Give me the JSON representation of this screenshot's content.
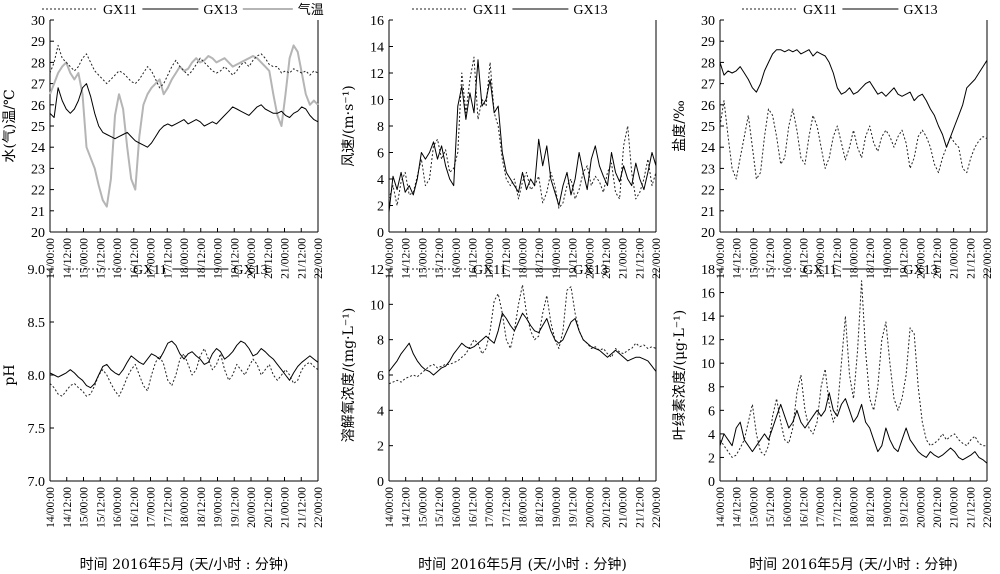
{
  "x_axis": {
    "label": "时间 2016年5月 (天/小时 : 分钟)",
    "tick_labels": [
      "14/00:00",
      "14/12:00",
      "15/00:00",
      "15/12:00",
      "16/00:00",
      "16/12:00",
      "17/00:00",
      "17/12:00",
      "18/00:00",
      "18/12:00",
      "19/00:00",
      "19/12:00",
      "20/00:00",
      "20/12:00",
      "21/00:00",
      "21/12:00",
      "22/00:00"
    ]
  },
  "styles": {
    "GX11": {
      "color": "#222222",
      "dash": "2,2",
      "width": 1
    },
    "GX13": {
      "color": "#000000",
      "dash": "",
      "width": 1
    },
    "气温": {
      "color": "#b5b5b5",
      "dash": "",
      "width": 2
    }
  },
  "chart_data": [
    {
      "type": "line",
      "ylabel": "水(气)温/℃",
      "ylim": [
        20,
        30
      ],
      "yticks": [
        "20",
        "21",
        "22",
        "23",
        "24",
        "25",
        "26",
        "27",
        "28",
        "29",
        "30"
      ],
      "series": [
        {
          "name": "GX11",
          "values": [
            27.5,
            28.0,
            28.8,
            28.2,
            28.0,
            27.8,
            27.6,
            27.8,
            28.2,
            28.4,
            28.0,
            27.6,
            27.4,
            27.2,
            27.0,
            27.2,
            27.4,
            27.6,
            27.5,
            27.3,
            27.1,
            27.0,
            27.2,
            27.5,
            27.8,
            27.6,
            27.2,
            26.8,
            27.0,
            27.4,
            27.8,
            28.1,
            27.8,
            27.6,
            27.4,
            27.6,
            27.9,
            28.2,
            28.0,
            27.8,
            27.6,
            27.5,
            27.6,
            27.8,
            27.6,
            27.4,
            27.6,
            27.9,
            28.0,
            27.8,
            28.1,
            28.3,
            28.4,
            28.2,
            27.9,
            27.8,
            27.8,
            27.5,
            27.6,
            27.5,
            27.7,
            27.6,
            27.5,
            27.6,
            27.4,
            27.6,
            27.5
          ]
        },
        {
          "name": "GX13",
          "values": [
            25.6,
            25.4,
            26.8,
            26.2,
            25.8,
            25.6,
            25.8,
            26.2,
            26.8,
            27.0,
            26.4,
            25.6,
            25.0,
            24.7,
            24.6,
            24.5,
            24.4,
            24.5,
            24.6,
            24.7,
            24.5,
            24.3,
            24.2,
            24.1,
            24.0,
            24.2,
            24.5,
            24.8,
            25.0,
            25.1,
            25.0,
            25.1,
            25.2,
            25.3,
            25.1,
            25.2,
            25.3,
            25.2,
            25.0,
            25.1,
            25.2,
            25.1,
            25.3,
            25.5,
            25.7,
            25.9,
            25.8,
            25.7,
            25.6,
            25.5,
            25.7,
            25.9,
            26.0,
            25.8,
            25.7,
            25.6,
            25.6,
            25.7,
            25.5,
            25.4,
            25.6,
            25.7,
            25.9,
            25.8,
            25.5,
            25.3,
            25.2
          ]
        },
        {
          "name": "气温",
          "values": [
            26.5,
            27.0,
            27.5,
            27.8,
            28.0,
            27.5,
            27.2,
            27.5,
            26.5,
            24.0,
            23.5,
            23.0,
            22.2,
            21.5,
            21.2,
            22.5,
            25.5,
            26.5,
            25.8,
            24.0,
            22.5,
            22.0,
            24.5,
            26.0,
            26.5,
            26.8,
            27.0,
            27.2,
            26.5,
            26.8,
            27.2,
            27.5,
            27.8,
            27.6,
            27.7,
            28.0,
            28.2,
            28.0,
            28.1,
            28.3,
            28.2,
            28.0,
            28.1,
            28.2,
            28.0,
            27.8,
            27.9,
            28.0,
            28.1,
            28.2,
            28.3,
            28.2,
            28.0,
            27.8,
            27.6,
            26.5,
            25.5,
            25.0,
            26.5,
            28.2,
            28.8,
            28.5,
            27.5,
            26.5,
            26.0,
            26.2,
            26.0
          ]
        }
      ]
    },
    {
      "type": "line",
      "ylabel": "风速/(m·s⁻¹)",
      "ylim": [
        0,
        16
      ],
      "yticks": [
        "0",
        "2",
        "4",
        "6",
        "8",
        "10",
        "12",
        "14",
        "16"
      ],
      "series": [
        {
          "name": "GX11",
          "values": [
            2.5,
            3.5,
            2.0,
            3.8,
            4.5,
            2.8,
            3.0,
            4.2,
            5.5,
            3.5,
            4.0,
            6.5,
            7.0,
            5.5,
            6.2,
            4.5,
            4.8,
            6.0,
            12.0,
            9.0,
            11.5,
            13.2,
            8.5,
            10.0,
            9.5,
            12.8,
            9.0,
            8.0,
            5.5,
            4.0,
            3.5,
            4.0,
            2.5,
            3.8,
            4.5,
            3.2,
            3.5,
            4.2,
            2.2,
            3.0,
            4.5,
            3.5,
            1.8,
            2.2,
            3.5,
            4.0,
            2.5,
            3.2,
            4.5,
            5.0,
            3.5,
            4.2,
            3.8,
            3.0,
            4.5,
            5.2,
            3.0,
            2.5,
            6.5,
            8.0,
            4.5,
            2.5,
            3.0,
            4.0,
            5.5,
            3.5,
            4.5
          ]
        },
        {
          "name": "GX13",
          "values": [
            1.5,
            4.2,
            3.2,
            4.5,
            3.0,
            3.5,
            2.8,
            4.0,
            6.0,
            5.5,
            6.0,
            6.8,
            5.5,
            6.5,
            5.0,
            4.0,
            3.5,
            9.5,
            11.0,
            8.5,
            10.5,
            9.0,
            13.0,
            9.5,
            10.0,
            11.5,
            9.0,
            9.5,
            6.0,
            4.5,
            4.0,
            3.5,
            3.0,
            4.5,
            3.2,
            4.0,
            3.5,
            7.0,
            5.0,
            6.5,
            4.0,
            3.0,
            2.0,
            3.5,
            4.5,
            2.8,
            4.0,
            6.0,
            4.5,
            3.2,
            5.5,
            6.5,
            5.0,
            4.2,
            3.5,
            6.0,
            4.5,
            3.8,
            5.0,
            4.0,
            3.5,
            5.2,
            4.0,
            3.2,
            4.5,
            6.0,
            5.0
          ]
        }
      ]
    },
    {
      "type": "line",
      "ylabel": "盐度/‰",
      "ylim": [
        20,
        30
      ],
      "yticks": [
        "20",
        "21",
        "22",
        "23",
        "24",
        "25",
        "26",
        "27",
        "28",
        "29",
        "30"
      ],
      "series": [
        {
          "name": "GX11",
          "values": [
            25.0,
            26.2,
            24.5,
            23.0,
            22.5,
            23.5,
            24.5,
            25.5,
            24.0,
            22.5,
            22.8,
            24.5,
            25.8,
            25.5,
            24.5,
            23.2,
            23.5,
            25.0,
            25.8,
            24.8,
            23.5,
            23.2,
            24.5,
            25.5,
            25.0,
            24.0,
            23.0,
            23.5,
            24.5,
            25.0,
            24.2,
            23.4,
            24.0,
            24.8,
            24.0,
            23.5,
            24.5,
            25.0,
            24.2,
            23.8,
            24.5,
            24.8,
            24.5,
            24.0,
            24.5,
            24.8,
            24.2,
            23.0,
            23.5,
            24.5,
            24.8,
            24.5,
            24.0,
            23.2,
            22.8,
            23.5,
            24.0,
            24.5,
            24.2,
            24.0,
            23.0,
            22.8,
            23.5,
            24.0,
            24.3,
            24.5,
            24.4
          ]
        },
        {
          "name": "GX13",
          "values": [
            28.0,
            27.4,
            27.6,
            27.5,
            27.6,
            27.8,
            27.5,
            27.2,
            26.8,
            26.6,
            27.0,
            27.6,
            28.0,
            28.4,
            28.6,
            28.6,
            28.5,
            28.6,
            28.5,
            28.6,
            28.4,
            28.5,
            28.6,
            28.3,
            28.5,
            28.4,
            28.3,
            28.0,
            27.5,
            26.8,
            26.5,
            26.6,
            26.8,
            26.5,
            26.6,
            26.8,
            27.0,
            27.1,
            26.8,
            26.5,
            26.6,
            26.4,
            26.6,
            26.8,
            26.5,
            26.4,
            26.5,
            26.6,
            26.2,
            26.4,
            26.5,
            26.2,
            25.8,
            25.5,
            25.0,
            24.6,
            24.0,
            24.5,
            25.0,
            25.5,
            26.0,
            26.8,
            27.0,
            27.2,
            27.5,
            27.8,
            28.1
          ]
        }
      ]
    },
    {
      "type": "line",
      "ylabel": "pH",
      "ylim": [
        7.0,
        9.0
      ],
      "yticks": [
        "7.0",
        "7.5",
        "8.0",
        "8.5",
        "9.0"
      ],
      "series": [
        {
          "name": "GX11",
          "values": [
            7.92,
            7.88,
            7.82,
            7.8,
            7.85,
            7.9,
            7.92,
            7.88,
            7.85,
            7.8,
            7.82,
            7.9,
            8.0,
            8.05,
            8.0,
            7.92,
            7.85,
            7.8,
            7.88,
            7.98,
            8.05,
            8.1,
            8.0,
            7.9,
            7.85,
            8.0,
            8.12,
            8.18,
            8.1,
            7.95,
            7.9,
            8.0,
            8.15,
            8.2,
            8.1,
            8.0,
            8.05,
            8.18,
            8.25,
            8.15,
            8.05,
            8.1,
            8.2,
            8.05,
            7.95,
            8.0,
            8.1,
            8.05,
            8.0,
            8.08,
            8.15,
            8.1,
            8.0,
            8.05,
            8.1,
            8.0,
            7.95,
            8.0,
            8.05,
            8.0,
            7.92,
            7.95,
            8.05,
            8.1,
            8.12,
            8.08,
            8.05
          ]
        },
        {
          "name": "GX13",
          "values": [
            8.02,
            8.0,
            7.98,
            8.0,
            8.02,
            8.05,
            8.02,
            7.98,
            7.95,
            7.9,
            7.88,
            7.92,
            8.0,
            8.08,
            8.1,
            8.05,
            8.02,
            8.0,
            8.05,
            8.12,
            8.18,
            8.15,
            8.12,
            8.1,
            8.15,
            8.2,
            8.18,
            8.15,
            8.22,
            8.3,
            8.32,
            8.28,
            8.2,
            8.15,
            8.2,
            8.22,
            8.18,
            8.15,
            8.1,
            8.12,
            8.2,
            8.25,
            8.22,
            8.15,
            8.18,
            8.22,
            8.28,
            8.32,
            8.3,
            8.25,
            8.18,
            8.2,
            8.25,
            8.22,
            8.18,
            8.15,
            8.1,
            8.05,
            8.0,
            7.95,
            8.02,
            8.08,
            8.12,
            8.15,
            8.18,
            8.15,
            8.12
          ]
        }
      ]
    },
    {
      "type": "line",
      "ylabel": "溶解氧浓度/(mg·L⁻¹)",
      "ylim": [
        0,
        12
      ],
      "yticks": [
        "0",
        "2",
        "4",
        "6",
        "8",
        "10",
        "12"
      ],
      "series": [
        {
          "name": "GX11",
          "values": [
            5.5,
            5.6,
            5.7,
            5.6,
            5.8,
            5.9,
            6.0,
            5.9,
            6.1,
            6.3,
            6.5,
            6.6,
            6.4,
            6.5,
            6.6,
            6.6,
            6.7,
            6.8,
            7.0,
            7.2,
            7.6,
            8.0,
            7.8,
            7.2,
            7.5,
            8.5,
            10.2,
            10.6,
            9.5,
            8.0,
            7.5,
            8.5,
            10.0,
            11.1,
            9.5,
            8.5,
            8.0,
            8.2,
            9.5,
            10.5,
            9.0,
            8.0,
            7.5,
            8.5,
            10.8,
            11.0,
            9.5,
            8.5,
            8.0,
            7.8,
            7.5,
            7.6,
            7.4,
            7.5,
            7.2,
            7.0,
            7.5,
            7.3,
            7.2,
            7.4,
            7.5,
            7.8,
            7.6,
            7.7,
            7.5,
            7.6,
            7.5
          ]
        },
        {
          "name": "GX13",
          "values": [
            6.2,
            6.5,
            6.8,
            7.2,
            7.5,
            7.8,
            7.2,
            6.8,
            6.5,
            6.3,
            6.2,
            6.0,
            6.2,
            6.4,
            6.5,
            6.8,
            7.2,
            7.5,
            7.8,
            7.6,
            7.5,
            7.6,
            7.8,
            8.0,
            8.2,
            8.0,
            7.8,
            8.5,
            9.5,
            9.2,
            8.8,
            8.5,
            9.0,
            9.5,
            9.2,
            8.8,
            8.5,
            8.4,
            8.8,
            9.2,
            8.5,
            8.0,
            7.8,
            8.0,
            8.5,
            9.0,
            9.2,
            8.5,
            8.0,
            7.8,
            7.6,
            7.5,
            7.4,
            7.2,
            7.0,
            7.2,
            7.4,
            7.2,
            7.0,
            6.8,
            6.9,
            7.0,
            7.0,
            6.9,
            6.8,
            6.5,
            6.2
          ]
        }
      ]
    },
    {
      "type": "line",
      "ylabel": "叶绿素浓度/(μg·L⁻¹)",
      "ylim": [
        0,
        18
      ],
      "yticks": [
        "0",
        "2",
        "4",
        "6",
        "8",
        "10",
        "12",
        "14",
        "16",
        "18"
      ],
      "series": [
        {
          "name": "GX11",
          "values": [
            3.5,
            3.0,
            2.5,
            2.0,
            2.2,
            2.8,
            3.5,
            5.0,
            6.5,
            4.0,
            2.5,
            2.2,
            3.0,
            5.5,
            7.0,
            5.0,
            3.5,
            3.2,
            4.5,
            7.5,
            9.0,
            6.0,
            4.5,
            4.0,
            5.0,
            8.0,
            9.5,
            6.5,
            5.0,
            6.0,
            10.0,
            14.0,
            9.0,
            7.0,
            11.0,
            17.0,
            11.0,
            7.0,
            6.0,
            8.0,
            12.0,
            13.5,
            10.0,
            7.0,
            6.0,
            7.0,
            9.0,
            13.0,
            12.5,
            8.0,
            5.0,
            3.5,
            3.0,
            3.2,
            3.5,
            4.0,
            3.5,
            3.8,
            4.0,
            3.5,
            3.2,
            3.0,
            3.5,
            3.8,
            3.2,
            3.0,
            3.0
          ]
        },
        {
          "name": "GX13",
          "values": [
            3.0,
            4.0,
            3.5,
            3.0,
            4.5,
            5.0,
            3.5,
            3.0,
            2.5,
            3.0,
            3.5,
            4.0,
            3.5,
            4.5,
            5.5,
            6.5,
            5.5,
            4.5,
            5.0,
            6.0,
            5.0,
            4.5,
            5.0,
            5.5,
            6.0,
            5.5,
            6.0,
            7.5,
            6.0,
            5.5,
            6.5,
            7.0,
            6.0,
            5.0,
            5.5,
            6.5,
            5.0,
            4.5,
            3.5,
            2.5,
            3.0,
            4.5,
            3.5,
            2.8,
            2.5,
            3.5,
            4.5,
            3.5,
            3.0,
            2.5,
            2.2,
            2.0,
            2.5,
            2.2,
            2.0,
            2.2,
            2.5,
            2.8,
            2.5,
            2.0,
            1.8,
            2.0,
            2.2,
            2.5,
            2.0,
            1.8,
            1.5
          ]
        }
      ]
    }
  ],
  "legends": [
    [
      "GX11",
      "GX13",
      "气温"
    ],
    [
      "GX11",
      "GX13"
    ],
    [
      "GX11",
      "GX13"
    ],
    [
      "GX11",
      "GX13"
    ],
    [
      "GX11",
      "GX13"
    ],
    [
      "GX11",
      "GX13"
    ]
  ]
}
